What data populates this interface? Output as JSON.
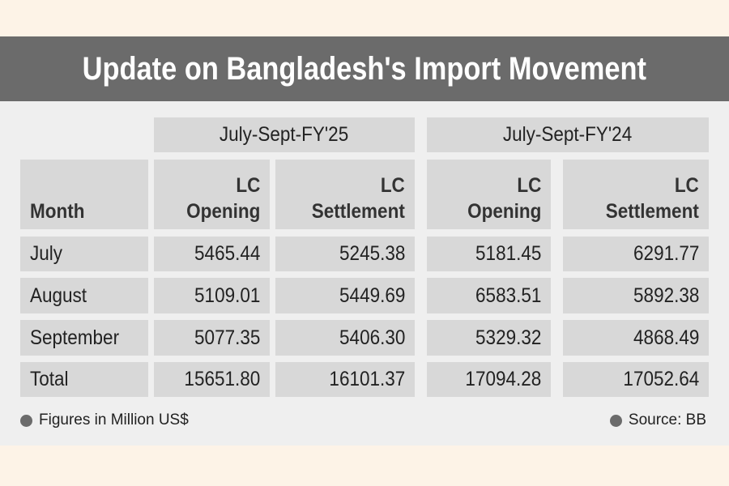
{
  "header": {
    "title": "Update on Bangladesh's Import Movement"
  },
  "table": {
    "groups": [
      "July-Sept-FY'25",
      "July-Sept-FY'24"
    ],
    "columns": [
      "Month",
      "LC Opening",
      "LC Settlement",
      "LC Opening",
      "LC Settlement"
    ],
    "rows": [
      [
        "July",
        "5465.44",
        "5245.38",
        "5181.45",
        "6291.77"
      ],
      [
        "August",
        "5109.01",
        "5449.69",
        "6583.51",
        "5892.38"
      ],
      [
        "September",
        "5077.35",
        "5406.30",
        "5329.32",
        "4868.49"
      ],
      [
        "Total",
        "15651.80",
        "16101.37",
        "17094.28",
        "17052.64"
      ]
    ]
  },
  "footer": {
    "note": "Figures in Million US$",
    "source": "Source: BB"
  }
}
